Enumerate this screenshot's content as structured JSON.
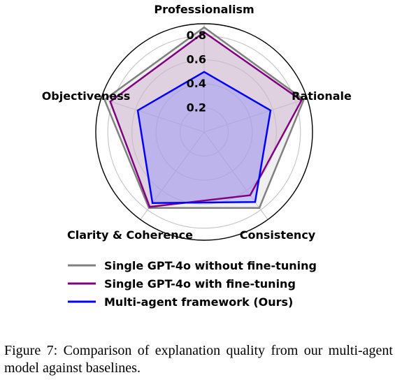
{
  "chart_data": {
    "type": "radar",
    "axes": [
      "Professionalism",
      "Rationale",
      "Consistency",
      "Clarity & Coherence",
      "Objectiveness"
    ],
    "rmax": 0.9,
    "rticks": [
      0.2,
      0.4,
      0.6,
      0.8
    ],
    "rtick_labels": [
      "0.2",
      "0.4",
      "0.6",
      "0.8"
    ],
    "grid": true,
    "legend_position": "bottom",
    "series": [
      {
        "name": "Single GPT-4o without fine-tuning",
        "values": [
          0.87,
          0.87,
          0.78,
          0.78,
          0.87
        ],
        "color": "#808080",
        "fill": "#d9d9d9"
      },
      {
        "name": "Single GPT-4o with fine-tuning",
        "values": [
          0.83,
          0.85,
          0.65,
          0.77,
          0.82
        ],
        "color": "#800080",
        "fill": "#c7a3c7"
      },
      {
        "name": "Multi-agent framework (Ours)",
        "values": [
          0.5,
          0.58,
          0.72,
          0.73,
          0.58
        ],
        "color": "#0000ff",
        "fill": "#8a8aff"
      }
    ]
  },
  "caption": "Figure 7: Comparison of explanation quality from our multi-agent model against baselines."
}
